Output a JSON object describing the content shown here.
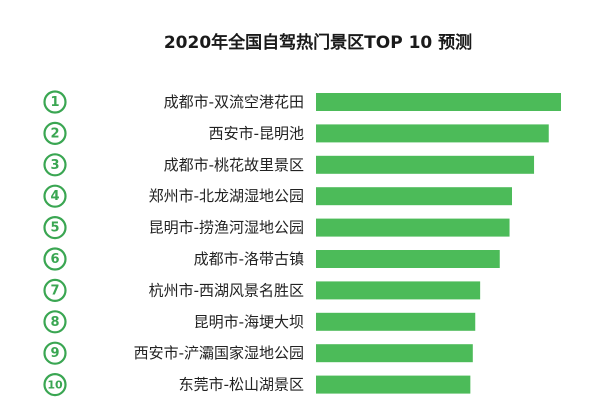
{
  "header": {
    "title": "2020年全国自驾热门景区TOP 10 预测"
  },
  "colors": {
    "bar": "#4cbb59",
    "rank": "#3aa652"
  },
  "chart_data": {
    "type": "bar",
    "orientation": "horizontal",
    "title": "2020年全国自驾热门景区TOP 10 预测",
    "ranks": [
      "1",
      "2",
      "3",
      "4",
      "5",
      "6",
      "7",
      "8",
      "9",
      "10"
    ],
    "categories": [
      "成都市-双流空港花田",
      "西安市-昆明池",
      "成都市-桃花故里景区",
      "郑州市-北龙湖湿地公园",
      "昆明市-捞渔河湿地公园",
      "成都市-洛带古镇",
      "杭州市-西湖风景名胜区",
      "昆明市-海埂大坝",
      "西安市-浐灞国家湿地公园",
      "东莞市-松山湖景区"
    ],
    "values": [
      100,
      95,
      89,
      80,
      79,
      75,
      67,
      65,
      64,
      63
    ],
    "xlim": [
      0,
      100
    ],
    "grid": false,
    "legend": "none"
  }
}
